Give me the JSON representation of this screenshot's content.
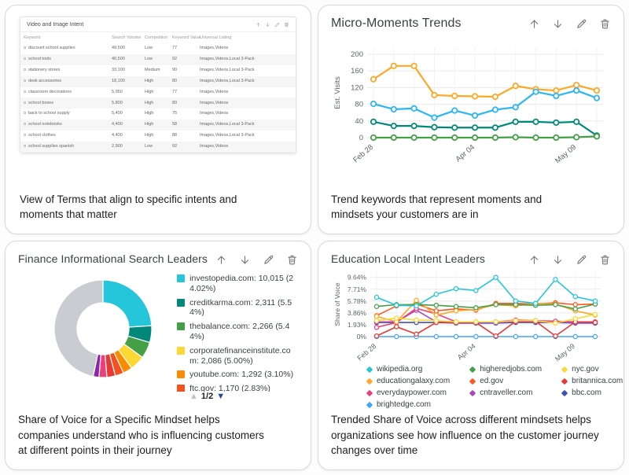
{
  "cards": {
    "video_image_intent": {
      "title": "Video and Image Intent",
      "caption": "View of Terms that align to specific intents and moments that matter"
    },
    "micro_moments": {
      "title": "Micro-Moments Trends",
      "caption": "Trend keywords that represent moments and mindsets your customers are in"
    },
    "finance": {
      "title": "Finance Informational Search Leaders",
      "caption": "Share of Voice for a Specific Mindset helps companies understand who is influencing customers at different points in their journey",
      "legend": [
        {
          "color": "#26C6DA",
          "text": "investopedia.com: 10,015 (24.02%)"
        },
        {
          "color": "#00897B",
          "text": "creditkarma.com: 2,311 (5.54%)"
        },
        {
          "color": "#43A047",
          "text": "thebalance.com: 2,266 (5.44%)"
        },
        {
          "color": "#FDD835",
          "text": "corporatefinanceinstitute.com: 2,086 (5.00%)"
        },
        {
          "color": "#FB8C00",
          "text": "youtube.com: 1,292 (3.10%)"
        },
        {
          "color": "#F4511E",
          "text": "ftc.gov: 1,170 (2.83%)"
        }
      ],
      "pagination": {
        "page": "1/2"
      }
    },
    "education": {
      "title": "Education Local Intent Leaders",
      "caption": "Trended Share of Voice across different mindsets helps organizations see how influence on the customer journey changes over time"
    },
    "header_icons": [
      "move-up",
      "move-down",
      "edit",
      "delete"
    ]
  },
  "chart_data": {
    "intent_table": {
      "type": "table",
      "columns": [
        "Keyword",
        "Search Volume",
        "Competition",
        "Keyword Value",
        "Universal Listing"
      ],
      "rows": [
        [
          "discount school supplies",
          "49,500",
          "Low",
          "77",
          "Images,Videos"
        ],
        [
          "school tools",
          "40,500",
          "Low",
          "92",
          "Images,Videos,Local 3-Pack"
        ],
        [
          "stationery stores",
          "33,100",
          "Medium",
          "90",
          "Images,Videos,Local 3-Pack"
        ],
        [
          "desk accessories",
          "18,100",
          "High",
          "80",
          "Images,Videos,Local 3-Pack"
        ],
        [
          "classroom decorations",
          "5,950",
          "High",
          "77",
          "Images,Videos"
        ],
        [
          "school boxes",
          "5,800",
          "High",
          "80",
          "Images,Videos"
        ],
        [
          "back to school supply",
          "5,400",
          "High",
          "75",
          "Images,Videos"
        ],
        [
          "school notebooks",
          "4,400",
          "High",
          "58",
          "Images,Videos,Local 3-Pack"
        ],
        [
          "school clothes",
          "4,400",
          "High",
          "88",
          "Images,Videos,Local 3-Pack"
        ],
        [
          "school supplies spanish",
          "2,900",
          "Low",
          "92",
          "Images,Videos"
        ]
      ]
    },
    "micro_moments": {
      "type": "line",
      "title": "Micro-Moments Trends",
      "ylabel": "Est. Visits",
      "x_labels": [
        "Feb 28",
        "",
        "",
        "",
        "",
        "Apr 04",
        "",
        "",
        "",
        "",
        "May 09",
        ""
      ],
      "yticks": [
        {
          "v": 0,
          "label": "0"
        },
        {
          "v": 40,
          "label": "40"
        },
        {
          "v": 80,
          "label": "80"
        },
        {
          "v": 120,
          "label": "120"
        },
        {
          "v": 160,
          "label": "160"
        },
        {
          "v": 200,
          "label": "200"
        }
      ],
      "ymax": 215,
      "series": [
        {
          "name": "series-orange",
          "color": "#FFA726",
          "values": [
            140,
            172,
            172,
            102,
            100,
            99,
            98,
            124,
            116,
            113,
            126,
            113
          ]
        },
        {
          "name": "series-blue",
          "color": "#29B6F6",
          "values": [
            81,
            68,
            70,
            48,
            65,
            53,
            67,
            73,
            110,
            100,
            113,
            95
          ]
        },
        {
          "name": "series-teal",
          "color": "#00897B",
          "values": [
            38,
            28,
            28,
            25,
            24,
            24,
            24,
            38,
            38,
            36,
            38,
            5
          ]
        },
        {
          "name": "series-green",
          "color": "#43A047",
          "values": [
            0,
            0,
            0,
            0,
            0,
            0,
            0,
            1,
            0,
            0,
            1,
            3
          ]
        }
      ]
    },
    "finance_donut": {
      "type": "pie",
      "title": "Finance Informational Search Leaders",
      "slices": [
        {
          "label": "investopedia.com",
          "value": 24.02,
          "color": "#26C6DA"
        },
        {
          "label": "creditkarma.com",
          "value": 5.54,
          "color": "#00897B"
        },
        {
          "label": "thebalance.com",
          "value": 5.44,
          "color": "#43A047"
        },
        {
          "label": "corporatefinanceinstitute.com",
          "value": 5.0,
          "color": "#FDD835"
        },
        {
          "label": "youtube.com",
          "value": 3.1,
          "color": "#FB8C00"
        },
        {
          "label": "ftc.gov",
          "value": 2.83,
          "color": "#F4511E"
        },
        {
          "label": "",
          "value": 2.8,
          "color": "#E53935"
        },
        {
          "label": "",
          "value": 2.6,
          "color": "#EC407A"
        },
        {
          "label": "",
          "value": 1.9,
          "color": "#8E24AA"
        },
        {
          "label": "",
          "value": 46.77,
          "color": "#C9CDD2"
        }
      ]
    },
    "education": {
      "type": "line",
      "title": "Education Local Intent Leaders",
      "ylabel": "Share of Voice",
      "x_labels": [
        "Feb 28",
        "",
        "",
        "",
        "",
        "Apr 04",
        "",
        "",
        "",
        "",
        "May 09",
        ""
      ],
      "yticks": [
        {
          "v": 0,
          "label": "0%"
        },
        {
          "v": 1.93,
          "label": "1.93%"
        },
        {
          "v": 3.86,
          "label": "3.86%"
        },
        {
          "v": 5.78,
          "label": "5.78%"
        },
        {
          "v": 7.71,
          "label": "7.71%"
        },
        {
          "v": 9.64,
          "label": "9.64%"
        }
      ],
      "ymax": 10.5,
      "draw_order": [
        9,
        8,
        7,
        6,
        5,
        4,
        3,
        2,
        1,
        0
      ],
      "series": [
        {
          "name": "wikipedia.org",
          "color": "#26C6DA",
          "values": [
            6.4,
            5.1,
            5.0,
            6.9,
            7.8,
            7.5,
            9.64,
            5.8,
            5.4,
            9.3,
            6.5,
            5.8
          ]
        },
        {
          "name": "higheredjobs.com",
          "color": "#43A047",
          "values": [
            4.9,
            5.2,
            5.2,
            5.1,
            4.9,
            4.7,
            5.2,
            5.2,
            5.1,
            5.2,
            4.5,
            5.3
          ]
        },
        {
          "name": "nyc.gov",
          "color": "#FDD835",
          "values": [
            2.6,
            3.0,
            2.7,
            2.6,
            2.4,
            2.4,
            2.4,
            2.6,
            2.6,
            2.2,
            2.9,
            3.6
          ]
        },
        {
          "name": "educationgalaxy.com",
          "color": "#FFA726",
          "values": [
            3.3,
            2.4,
            5.9,
            3.5,
            4.2,
            4.4,
            5.2,
            5.0,
            5.4,
            5.3,
            4.2,
            3.5
          ]
        },
        {
          "name": "ed.gov",
          "color": "#FF5722",
          "values": [
            3.4,
            5.0,
            5.3,
            4.2,
            4.5,
            4.3,
            5.4,
            5.4,
            5.3,
            5.5,
            5.2,
            5.3
          ]
        },
        {
          "name": "britannica.com",
          "color": "#E53935",
          "values": [
            0.1,
            1.6,
            0.4,
            2.3,
            2.3,
            2.3,
            0.1,
            2.5,
            2.5,
            0.1,
            2.4,
            2.3
          ]
        },
        {
          "name": "everydaypower.com",
          "color": "#EC407A",
          "values": [
            1.5,
            2.3,
            4.6,
            3.7,
            2.4,
            2.4,
            2.4,
            2.7,
            2.6,
            2.5,
            2.4,
            2.4
          ]
        },
        {
          "name": "cntraveller.com",
          "color": "#AB47BC",
          "values": [
            2.4,
            2.4,
            4.3,
            2.4,
            2.3,
            2.3,
            2.3,
            2.4,
            2.4,
            2.4,
            2.3,
            2.3
          ]
        },
        {
          "name": "bbc.com",
          "color": "#3F51B5",
          "values": [
            2.3,
            2.3,
            2.3,
            2.3,
            2.2,
            2.2,
            2.2,
            2.3,
            2.3,
            2.3,
            2.2,
            2.2
          ]
        },
        {
          "name": "brightedge.com",
          "color": "#42A5F5",
          "values": [
            0,
            0,
            0,
            0,
            0,
            0,
            0,
            0,
            0,
            0,
            0,
            0
          ]
        }
      ]
    }
  }
}
